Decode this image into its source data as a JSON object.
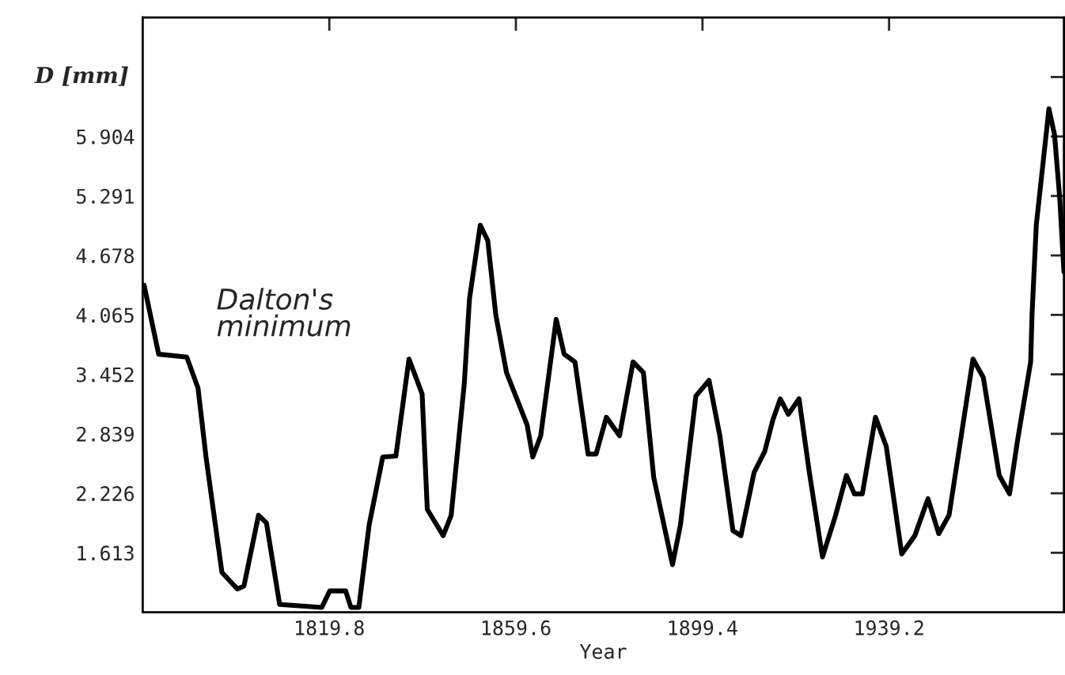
{
  "chart_data": {
    "type": "line",
    "xlabel": "Year",
    "ylabel": "D [mm]",
    "annotations": [
      "Dalton's\nminimum"
    ],
    "xlim": [
      1780,
      1976.5
    ],
    "ylim": [
      1.0,
      7.13
    ],
    "xticks": [
      1819.8,
      1859.6,
      1899.4,
      1939.2
    ],
    "yticks": [
      1.613,
      2.226,
      2.839,
      3.452,
      4.065,
      4.678,
      5.291,
      5.904,
      {
        "value": 6.517,
        "label": null
      }
    ],
    "grid": false,
    "legend": false,
    "marker": "none",
    "line_style": "solid",
    "series": [
      {
        "color": "#000000",
        "x": [
          1780.3,
          1783.4,
          1789.4,
          1791.8,
          1793.5,
          1796.9,
          1800.2,
          1801.6,
          1804.7,
          1806.4,
          1809.2,
          1818.2,
          1819.9,
          1823.3,
          1824.4,
          1826.1,
          1828.3,
          1831.2,
          1834.0,
          1836.8,
          1839.6,
          1840.7,
          1844.1,
          1845.8,
          1848.6,
          1849.7,
          1852.0,
          1853.6,
          1855.3,
          1857.6,
          1862.0,
          1863.2,
          1864.9,
          1868.2,
          1869.9,
          1872.2,
          1875.0,
          1876.7,
          1878.9,
          1881.7,
          1884.6,
          1886.8,
          1889.0,
          1893.0,
          1894.7,
          1898.0,
          1900.8,
          1903.1,
          1905.9,
          1907.6,
          1910.4,
          1912.7,
          1914.4,
          1916.0,
          1917.7,
          1920.0,
          1922.2,
          1925.0,
          1927.8,
          1930.1,
          1931.8,
          1933.5,
          1936.3,
          1938.6,
          1941.9,
          1944.7,
          1947.5,
          1949.8,
          1952.0,
          1957.1,
          1959.3,
          1962.7,
          1964.9,
          1966.6,
          1969.4,
          1969.7,
          1970.6,
          1972.2,
          1973.3,
          1974.5,
          1975.6,
          1976.5
        ],
        "values": [
          4.37,
          3.66,
          3.63,
          3.31,
          2.6,
          1.41,
          1.24,
          1.27,
          2.0,
          1.92,
          1.08,
          1.05,
          1.22,
          1.22,
          1.05,
          1.05,
          1.9,
          2.6,
          2.61,
          3.61,
          3.25,
          2.06,
          1.79,
          2.0,
          3.36,
          4.23,
          4.99,
          4.83,
          4.07,
          3.47,
          2.93,
          2.6,
          2.82,
          4.02,
          3.66,
          3.58,
          2.63,
          2.63,
          3.01,
          2.82,
          3.58,
          3.47,
          2.39,
          1.49,
          1.9,
          3.23,
          3.39,
          2.82,
          1.84,
          1.79,
          2.44,
          2.66,
          2.98,
          3.2,
          3.04,
          3.2,
          2.44,
          1.57,
          2.0,
          2.41,
          2.22,
          2.22,
          3.01,
          2.71,
          1.6,
          1.79,
          2.17,
          1.81,
          2.0,
          3.61,
          3.42,
          2.41,
          2.22,
          2.77,
          3.58,
          4.07,
          4.99,
          5.7,
          6.19,
          5.92,
          5.27,
          4.51
        ]
      }
    ]
  }
}
